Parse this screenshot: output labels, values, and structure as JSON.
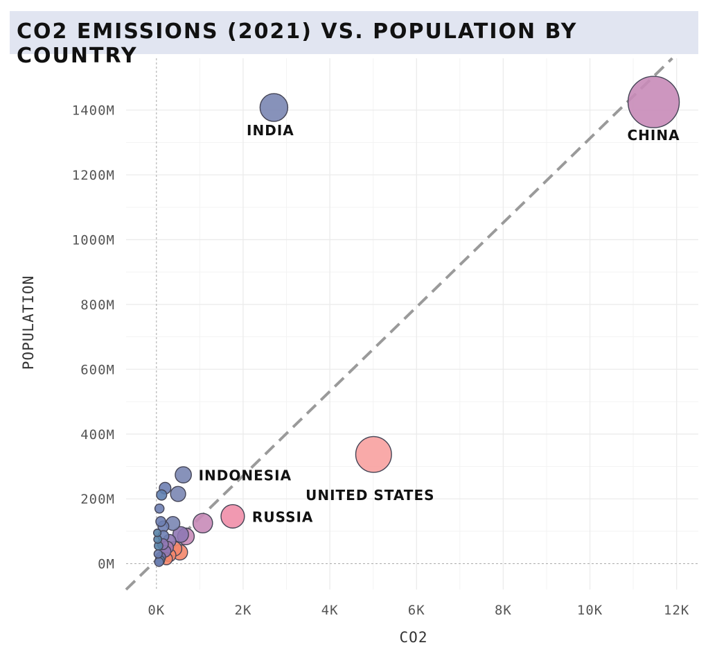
{
  "chart_data": {
    "type": "scatter",
    "title": "CO2 EMISSIONS (2021) VS. POPULATION BY COUNTRY",
    "xlabel": "CO2",
    "ylabel": "POPULATION",
    "xlim": [
      -700,
      12500
    ],
    "ylim": [
      -80,
      1560
    ],
    "x_ticks": [
      {
        "v": 0,
        "label": "0K"
      },
      {
        "v": 2000,
        "label": "2K"
      },
      {
        "v": 4000,
        "label": "4K"
      },
      {
        "v": 6000,
        "label": "6K"
      },
      {
        "v": 8000,
        "label": "8K"
      },
      {
        "v": 10000,
        "label": "10K"
      },
      {
        "v": 12000,
        "label": "12K"
      }
    ],
    "y_ticks": [
      {
        "v": 0,
        "label": "0M"
      },
      {
        "v": 200,
        "label": "200M"
      },
      {
        "v": 400,
        "label": "400M"
      },
      {
        "v": 600,
        "label": "600M"
      },
      {
        "v": 800,
        "label": "800M"
      },
      {
        "v": 1000,
        "label": "1000M"
      },
      {
        "v": 1200,
        "label": "1200M"
      },
      {
        "v": 1400,
        "label": "1400M"
      }
    ],
    "grid": true,
    "reference_line": {
      "style": "dashed",
      "from": [
        -700,
        -80
      ],
      "to": [
        11900,
        1560
      ]
    },
    "points": [
      {
        "label": "CHINA",
        "x": 11470,
        "y": 1425,
        "size": 11470,
        "color": "#c88bb8"
      },
      {
        "label": "INDIA",
        "x": 2710,
        "y": 1408,
        "size": 2710,
        "color": "#7a86b2"
      },
      {
        "label": "UNITED STATES",
        "x": 5010,
        "y": 337,
        "size": 5010,
        "color": "#f8a1a0"
      },
      {
        "label": "RUSSIA",
        "x": 1760,
        "y": 146,
        "size": 1760,
        "color": "#f08ea8"
      },
      {
        "label": "INDONESIA",
        "x": 620,
        "y": 274,
        "size": 620,
        "color": "#7a86b2"
      },
      {
        "label": "",
        "x": 500,
        "y": 215,
        "size": 500,
        "color": "#7a86b2"
      },
      {
        "label": "",
        "x": 1070,
        "y": 125,
        "size": 1070,
        "color": "#c88bb8"
      },
      {
        "label": "",
        "x": 680,
        "y": 84,
        "size": 680,
        "color": "#c88bb8"
      },
      {
        "label": "",
        "x": 560,
        "y": 90,
        "size": 560,
        "color": "#8f78b4"
      },
      {
        "label": "",
        "x": 380,
        "y": 124,
        "size": 380,
        "color": "#7a86b2"
      },
      {
        "label": "",
        "x": 300,
        "y": 70,
        "size": 300,
        "color": "#8f78b4"
      },
      {
        "label": "",
        "x": 540,
        "y": 35,
        "size": 540,
        "color": "#f4876c"
      },
      {
        "label": "",
        "x": 420,
        "y": 46,
        "size": 420,
        "color": "#f4876c"
      },
      {
        "label": "",
        "x": 300,
        "y": 26,
        "size": 300,
        "color": "#f4876c"
      },
      {
        "label": "",
        "x": 200,
        "y": 38,
        "size": 200,
        "color": "#8f78b4"
      },
      {
        "label": "",
        "x": 120,
        "y": 212,
        "size": 120,
        "color": "#5f7fb0"
      },
      {
        "label": "",
        "x": 20,
        "y": 95,
        "size": 20,
        "color": "#5a84a8"
      },
      {
        "label": "",
        "x": 100,
        "y": 130,
        "size": 100,
        "color": "#6e7fb2"
      },
      {
        "label": "",
        "x": 70,
        "y": 170,
        "size": 70,
        "color": "#6e7fb2"
      },
      {
        "label": "",
        "x": 200,
        "y": 233,
        "size": 200,
        "color": "#6e7fb2"
      },
      {
        "label": "",
        "x": 160,
        "y": 115,
        "size": 160,
        "color": "#6e7fb2"
      },
      {
        "label": "",
        "x": 50,
        "y": 55,
        "size": 50,
        "color": "#5a84a8"
      },
      {
        "label": "",
        "x": 100,
        "y": 20,
        "size": 100,
        "color": "#6a6fa8"
      },
      {
        "label": "",
        "x": 80,
        "y": 10,
        "size": 80,
        "color": "#5a84a8"
      },
      {
        "label": "",
        "x": 40,
        "y": 30,
        "size": 40,
        "color": "#6e7fb2"
      },
      {
        "label": "",
        "x": 150,
        "y": 60,
        "size": 150,
        "color": "#8f78b4"
      },
      {
        "label": "",
        "x": 250,
        "y": 50,
        "size": 250,
        "color": "#a97ab0"
      },
      {
        "label": "",
        "x": 60,
        "y": 5,
        "size": 60,
        "color": "#6e7fb2"
      },
      {
        "label": "",
        "x": 230,
        "y": 15,
        "size": 230,
        "color": "#f4876c"
      },
      {
        "label": "",
        "x": 30,
        "y": 75,
        "size": 30,
        "color": "#5a84a8"
      },
      {
        "label": "",
        "x": 160,
        "y": 85,
        "size": 160,
        "color": "#6e7fb2"
      }
    ]
  }
}
